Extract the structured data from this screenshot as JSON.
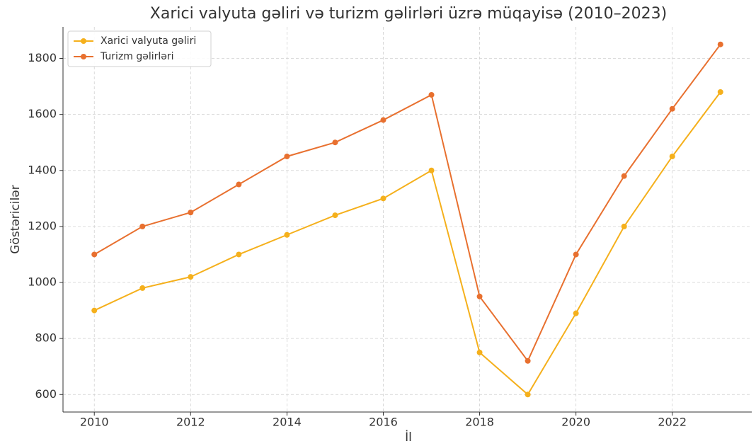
{
  "chart_data": {
    "type": "line",
    "title": "Xarici valyuta gəliri və turizm gəlirləri üzrə müqayisə (2010–2023)",
    "xlabel": "İl",
    "ylabel": "Göstəricilər",
    "x": [
      2010,
      2011,
      2012,
      2013,
      2014,
      2015,
      2016,
      2017,
      2018,
      2019,
      2020,
      2021,
      2022,
      2023
    ],
    "series": [
      {
        "name": "Xarici valyuta gəliri",
        "color": "#f5b01c",
        "values": [
          900,
          980,
          1020,
          1100,
          1170,
          1240,
          1300,
          1400,
          750,
          600,
          890,
          1200,
          1450,
          1680
        ]
      },
      {
        "name": "Turizm gəlirləri",
        "color": "#e8702f",
        "values": [
          1100,
          1200,
          1250,
          1350,
          1450,
          1500,
          1580,
          1670,
          950,
          720,
          1100,
          1380,
          1620,
          1850
        ]
      }
    ],
    "xlim": [
      2009.35,
      2023.65
    ],
    "xticks": [
      2010,
      2012,
      2014,
      2016,
      2018,
      2020,
      2022
    ],
    "ylim": [
      537.5,
      1912.5
    ],
    "yticks": [
      600,
      800,
      1000,
      1200,
      1400,
      1600,
      1800
    ],
    "grid": true,
    "legend": "upper left"
  }
}
